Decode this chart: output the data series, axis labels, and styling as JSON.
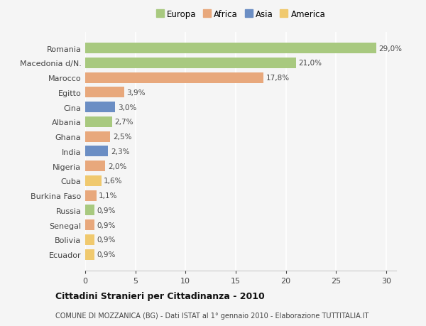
{
  "countries": [
    "Romania",
    "Macedonia d/N.",
    "Marocco",
    "Egitto",
    "Cina",
    "Albania",
    "Ghana",
    "India",
    "Nigeria",
    "Cuba",
    "Burkina Faso",
    "Russia",
    "Senegal",
    "Bolivia",
    "Ecuador"
  ],
  "values": [
    29.0,
    21.0,
    17.8,
    3.9,
    3.0,
    2.7,
    2.5,
    2.3,
    2.0,
    1.6,
    1.1,
    0.9,
    0.9,
    0.9,
    0.9
  ],
  "labels": [
    "29,0%",
    "21,0%",
    "17,8%",
    "3,9%",
    "3,0%",
    "2,7%",
    "2,5%",
    "2,3%",
    "2,0%",
    "1,6%",
    "1,1%",
    "0,9%",
    "0,9%",
    "0,9%",
    "0,9%"
  ],
  "continents": [
    "Europa",
    "Europa",
    "Africa",
    "Africa",
    "Asia",
    "Europa",
    "Africa",
    "Asia",
    "Africa",
    "America",
    "Africa",
    "Europa",
    "Africa",
    "America",
    "America"
  ],
  "continent_colors": {
    "Europa": "#a8c97f",
    "Africa": "#e8a87c",
    "Asia": "#6b8ec4",
    "America": "#f0c96e"
  },
  "legend_order": [
    "Europa",
    "Africa",
    "Asia",
    "America"
  ],
  "title": "Cittadini Stranieri per Cittadinanza - 2010",
  "subtitle": "COMUNE DI MOZZANICA (BG) - Dati ISTAT al 1° gennaio 2010 - Elaborazione TUTTITALIA.IT",
  "xlim": [
    0,
    31
  ],
  "xticks": [
    0,
    5,
    10,
    15,
    20,
    25,
    30
  ],
  "background_color": "#f5f5f5",
  "grid_color": "#ffffff",
  "bar_height": 0.72
}
